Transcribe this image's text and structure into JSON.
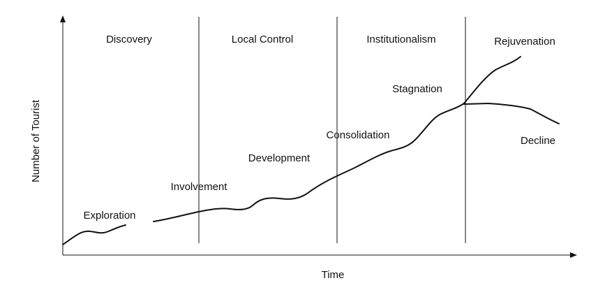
{
  "phases": [
    "Discovery",
    "Local Control",
    "Institutionalism",
    "Rejuvenation"
  ],
  "stages": [
    "Exploration",
    "Involvement",
    "Development",
    "Consolidation",
    "Stagnation",
    "Decline"
  ],
  "axes": {
    "y_label": "Number of Tourist",
    "x_label": "Time"
  }
}
